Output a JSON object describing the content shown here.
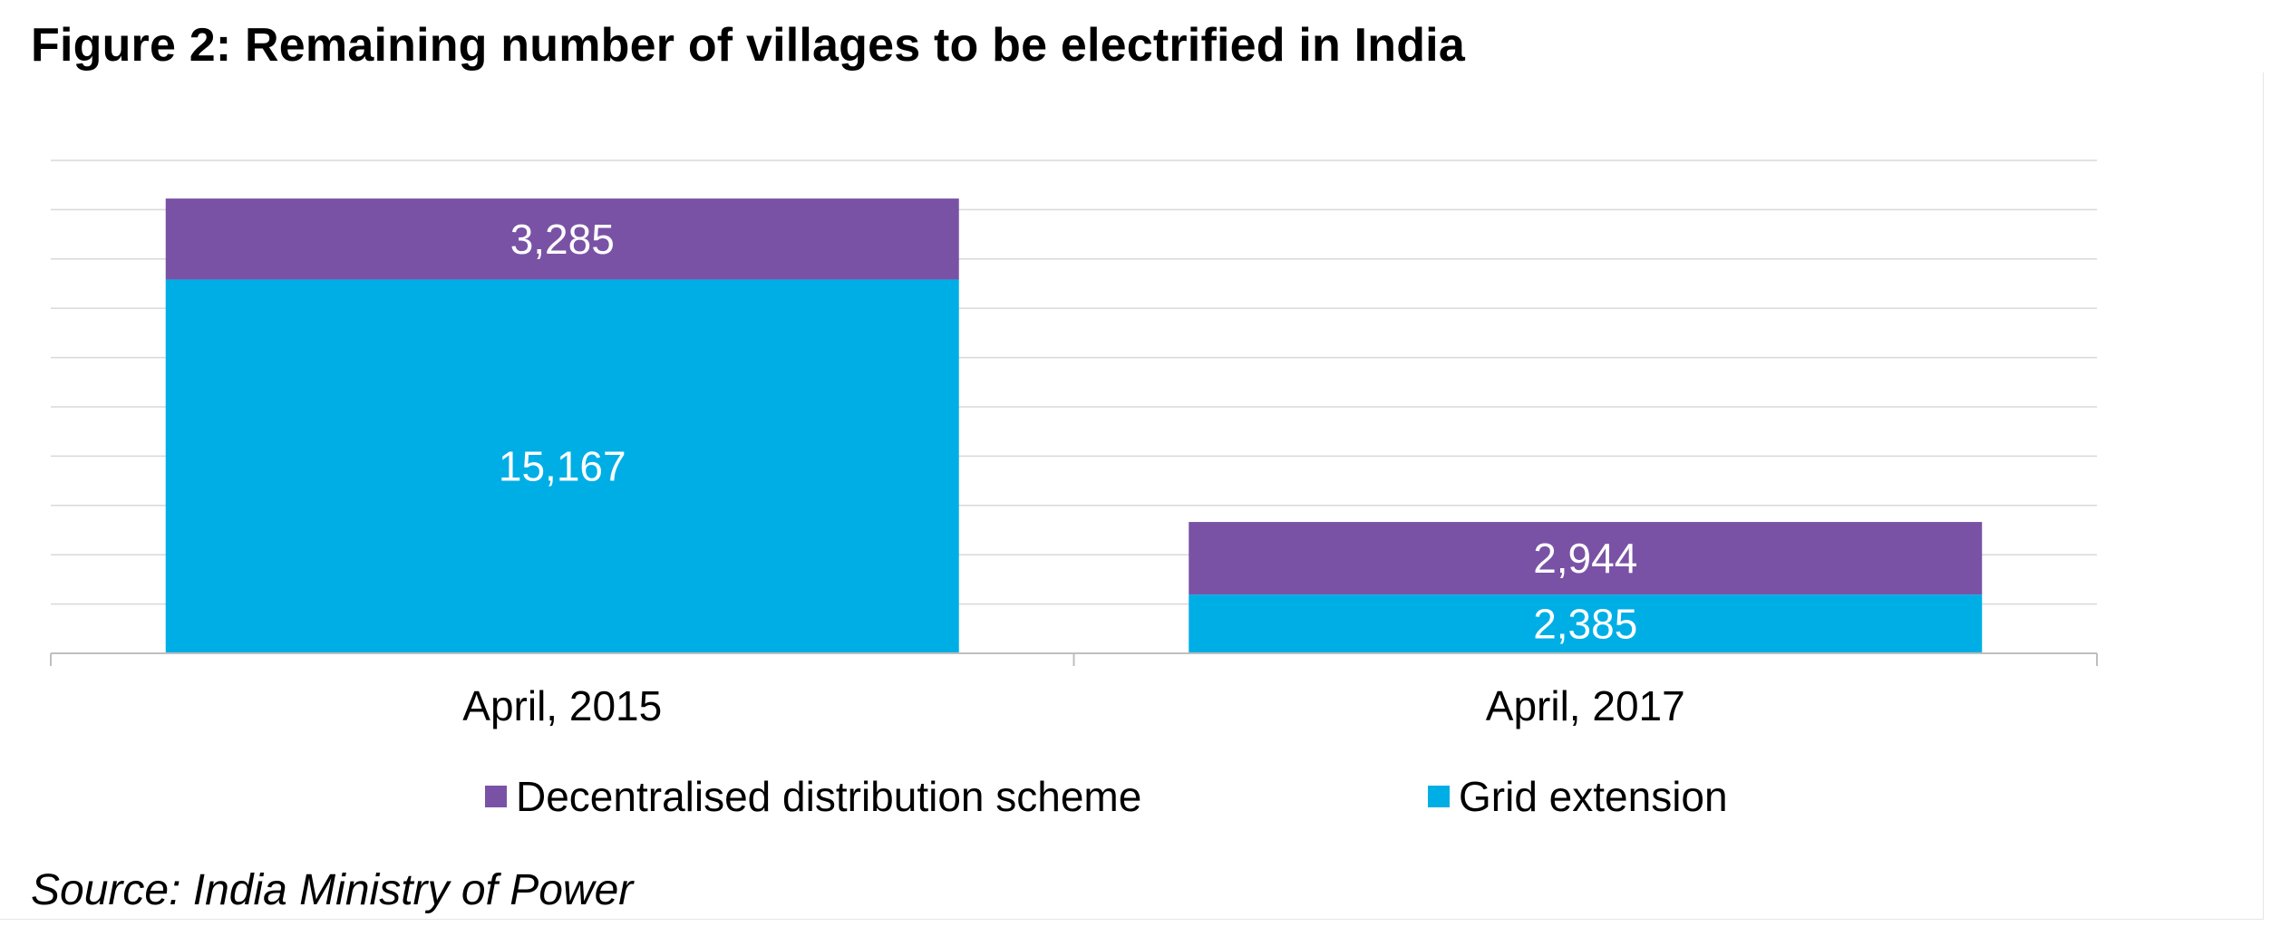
{
  "title": "Figure 2: Remaining number of villages to be electrified in India",
  "source": "Source: India Ministry of Power",
  "colors": {
    "decentralised": "#7952A5",
    "grid": "#00AEE6",
    "gridline": "#D9D9D9",
    "axis": "#BFBFBF",
    "label_on_bar": "#FFFFFF"
  },
  "chart_data": {
    "type": "bar",
    "stacked": true,
    "categories": [
      "April, 2015",
      "April, 2017"
    ],
    "series": [
      {
        "name": "Grid extension",
        "values": [
          15167,
          2385
        ]
      },
      {
        "name": "Decentralised distribution scheme",
        "values": [
          3285,
          2944
        ]
      }
    ],
    "data_labels": [
      [
        "15,167",
        "2,385"
      ],
      [
        "3,285",
        "2,944"
      ]
    ],
    "ylim": [
      0,
      20000
    ],
    "grid": true,
    "legend_position": "bottom",
    "legend": [
      "Decentralised distribution scheme",
      "Grid extension"
    ]
  }
}
